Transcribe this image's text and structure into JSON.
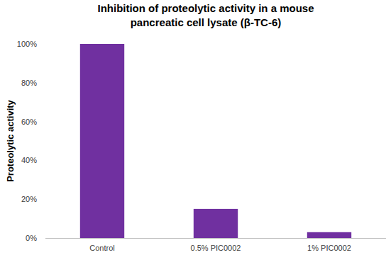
{
  "chart_data": {
    "type": "bar",
    "title": "Inhibition of proteolytic activity in a mouse pancreatic cell lysate (β-TC-6)",
    "y_label": "Proteolytic activity",
    "categories": [
      "Control",
      "0.5% PIC0002",
      "1% PIC0002"
    ],
    "values": [
      100,
      15,
      3
    ],
    "color": "#7030a0",
    "ylim": [
      0,
      100
    ],
    "yticks": [
      {
        "value": 0,
        "label": "0%"
      },
      {
        "value": 20,
        "label": "20%"
      },
      {
        "value": 40,
        "label": "40%"
      },
      {
        "value": 60,
        "label": "60%"
      },
      {
        "value": 80,
        "label": "80%"
      },
      {
        "value": 100,
        "label": "100%"
      }
    ],
    "grid": false
  }
}
